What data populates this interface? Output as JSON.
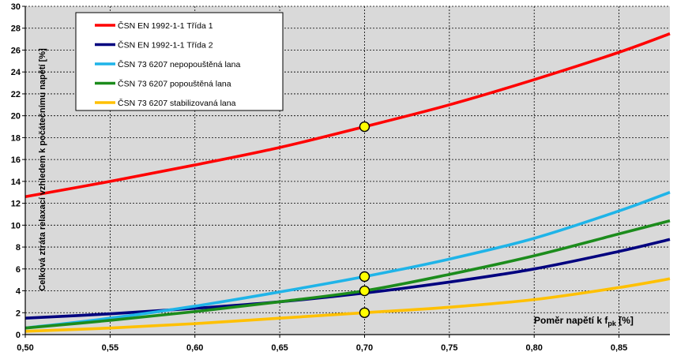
{
  "chart_data": {
    "type": "line",
    "title": "",
    "xlabel": "Poměr napětí k f",
    "xlabel_sub": "pk",
    "xlabel_unit": " [%]",
    "ylabel": "Celková ztráta relaxací vzhledem k počátečnímu napětí [%]",
    "xlim": [
      0.5,
      0.88
    ],
    "ylim": [
      0,
      30
    ],
    "xticks": [
      0.5,
      0.55,
      0.6,
      0.65,
      0.7,
      0.75,
      0.8,
      0.85
    ],
    "xtick_labels": [
      "0,50",
      "0,55",
      "0,60",
      "0,65",
      "0,70",
      "0,75",
      "0,80",
      "0,85"
    ],
    "yticks": [
      0,
      2,
      4,
      6,
      8,
      10,
      12,
      14,
      16,
      18,
      20,
      22,
      24,
      26,
      28,
      30
    ],
    "ytick_labels": [
      "0",
      "2",
      "4",
      "6",
      "8",
      "10",
      "12",
      "14",
      "16",
      "18",
      "20",
      "22",
      "24",
      "26",
      "28",
      "30"
    ],
    "grid": true,
    "plot_background": "#d9d9d9",
    "legend_position": "top-left",
    "series": [
      {
        "name": "ČSN EN 1992-1-1 Třída 1",
        "color": "#ff0000",
        "x": [
          0.5,
          0.55,
          0.6,
          0.65,
          0.7,
          0.75,
          0.8,
          0.85,
          0.88
        ],
        "y": [
          12.6,
          14.0,
          15.5,
          17.1,
          19.0,
          21.0,
          23.3,
          25.8,
          27.5
        ]
      },
      {
        "name": "ČSN EN 1992-1-1 Třída 2",
        "color": "#00007f",
        "x": [
          0.5,
          0.55,
          0.6,
          0.65,
          0.7,
          0.75,
          0.8,
          0.85,
          0.88
        ],
        "y": [
          1.5,
          1.9,
          2.4,
          3.0,
          3.8,
          4.8,
          6.0,
          7.6,
          8.7
        ]
      },
      {
        "name": "ČSN 73 6207  nepopouštěná lana",
        "color": "#1fb4e8",
        "x": [
          0.5,
          0.55,
          0.6,
          0.65,
          0.7,
          0.75,
          0.8,
          0.85,
          0.88
        ],
        "y": [
          0.6,
          1.5,
          2.6,
          3.9,
          5.3,
          6.9,
          8.8,
          11.3,
          13.0
        ]
      },
      {
        "name": "ČSN 73 6207  popouštěná lana",
        "color": "#1c8c1c",
        "x": [
          0.5,
          0.55,
          0.6,
          0.65,
          0.7,
          0.75,
          0.8,
          0.85,
          0.88
        ],
        "y": [
          0.6,
          1.3,
          2.1,
          3.0,
          4.0,
          5.5,
          7.2,
          9.2,
          10.4
        ]
      },
      {
        "name": "ČSN 73 6207  stabilizovaná lana",
        "color": "#ffc000",
        "x": [
          0.5,
          0.55,
          0.6,
          0.65,
          0.7,
          0.75,
          0.8,
          0.85,
          0.88
        ],
        "y": [
          0.3,
          0.6,
          1.0,
          1.5,
          2.0,
          2.5,
          3.2,
          4.3,
          5.1
        ]
      }
    ],
    "markers": [
      {
        "x": 0.7,
        "y": 19.0
      },
      {
        "x": 0.7,
        "y": 5.3
      },
      {
        "x": 0.7,
        "y": 4.0
      },
      {
        "x": 0.7,
        "y": 2.0
      }
    ],
    "marker_fill": "#ffff00",
    "marker_stroke": "#000000"
  }
}
